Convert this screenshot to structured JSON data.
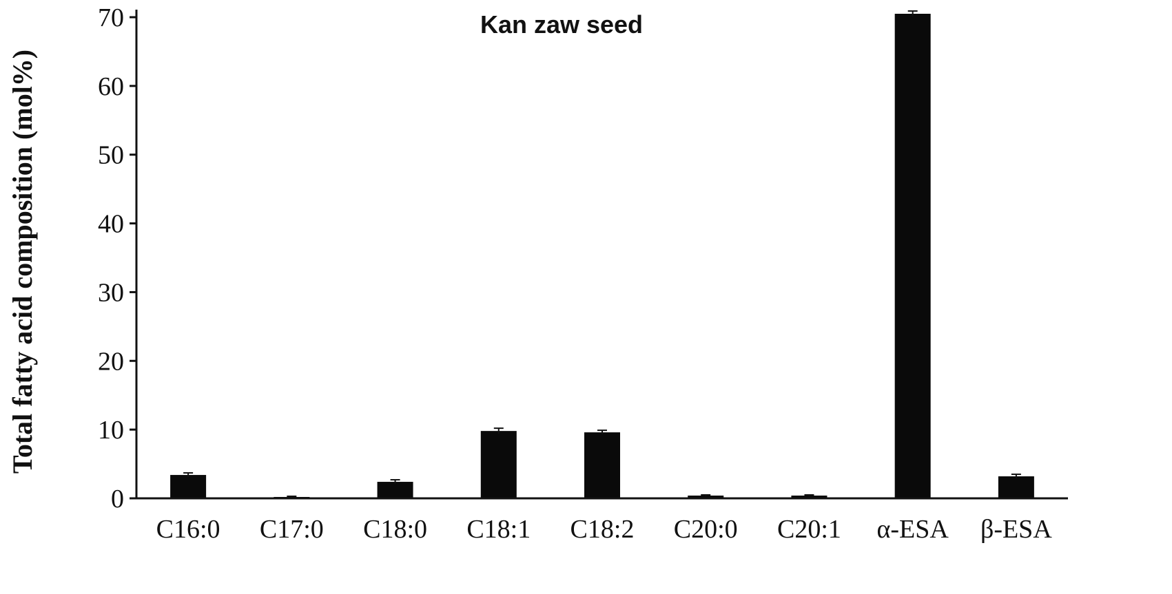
{
  "chart_data": {
    "type": "bar",
    "title": "Kan zaw seed",
    "xlabel": "",
    "ylabel": "Total fatty acid composition (mol%)",
    "ylim": [
      0,
      70
    ],
    "yticks": [
      0,
      10,
      20,
      30,
      40,
      50,
      60,
      70
    ],
    "grid": false,
    "legend": "none",
    "bar_color": "#0a0a0a",
    "categories": [
      "C16:0",
      "C17:0",
      "C18:0",
      "C18:1",
      "C18:2",
      "C20:0",
      "C20:1",
      "α-ESA",
      "β-ESA"
    ],
    "values": [
      3.4,
      0.2,
      2.4,
      9.8,
      9.6,
      0.4,
      0.4,
      70.5,
      3.2
    ],
    "errors": [
      0.3,
      0.1,
      0.3,
      0.4,
      0.3,
      0.1,
      0.1,
      0.4,
      0.3
    ]
  }
}
